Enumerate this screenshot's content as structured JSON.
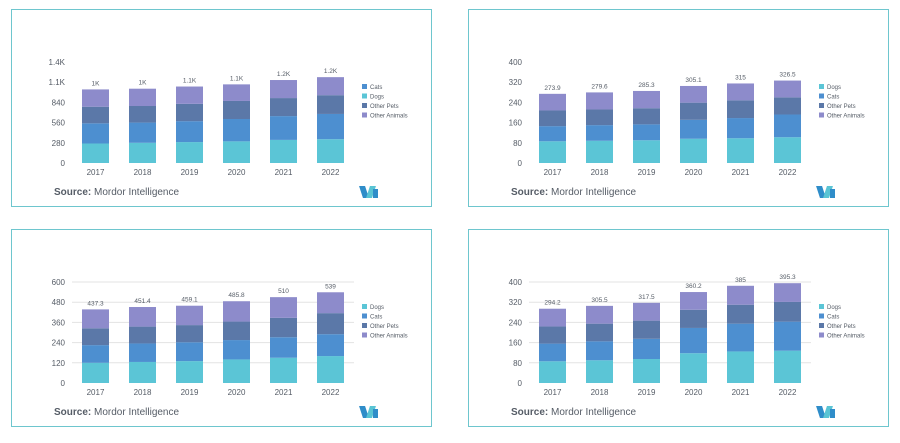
{
  "colors": {
    "dogs": "#5bc5d6",
    "cats": "#4d8fd0",
    "other_pets": "#5b78a8",
    "other_animals": "#8d8bcb",
    "border": "#6ec6ce",
    "text": "#555c66",
    "grid": "#e3e3e3"
  },
  "source_label": "Source:",
  "source_name": "Mordor Intelligence",
  "logo_icon": "mordor-intelligence-logo-icon",
  "chart_data": [
    {
      "type": "bar",
      "stacked": true,
      "categories": [
        "2017",
        "2018",
        "2019",
        "2020",
        "2021",
        "2022"
      ],
      "yticks": [
        "0",
        "280",
        "560",
        "840",
        "1.1K",
        "1.4K"
      ],
      "ylim": [
        0,
        1400
      ],
      "grid": false,
      "legend_position": "right",
      "legend_order": [
        "Cats",
        "Dogs",
        "Other Pets",
        "Other Animals"
      ],
      "totals": [
        "1K",
        "1K",
        "1.1K",
        "1.1K",
        "1.2K",
        "1.2K"
      ],
      "series": [
        {
          "name": "Dogs",
          "color_key": "dogs",
          "values": [
            270,
            280,
            290,
            300,
            320,
            330
          ]
        },
        {
          "name": "Cats",
          "color_key": "cats",
          "values": [
            280,
            280,
            290,
            310,
            330,
            350
          ]
        },
        {
          "name": "Other Pets",
          "color_key": "other_pets",
          "values": [
            230,
            230,
            240,
            250,
            250,
            260
          ]
        },
        {
          "name": "Other Animals",
          "color_key": "other_animals",
          "values": [
            240,
            240,
            240,
            230,
            250,
            250
          ]
        }
      ]
    },
    {
      "type": "bar",
      "stacked": true,
      "categories": [
        "2017",
        "2018",
        "2019",
        "2020",
        "2021",
        "2022"
      ],
      "yticks": [
        "0",
        "80",
        "160",
        "240",
        "320",
        "400"
      ],
      "ylim": [
        0,
        400
      ],
      "grid": false,
      "legend_position": "right",
      "legend_order": [
        "Dogs",
        "Cats",
        "Other Pets",
        "Other Animals"
      ],
      "totals": [
        "273.9",
        "279.6",
        "285.3",
        "305.1",
        "315",
        "326.5"
      ],
      "series": [
        {
          "name": "Dogs",
          "color_key": "dogs",
          "values": [
            86,
            88,
            90,
            96,
            98,
            102
          ]
        },
        {
          "name": "Cats",
          "color_key": "cats",
          "values": [
            60,
            62,
            63,
            75,
            80,
            90
          ]
        },
        {
          "name": "Other Pets",
          "color_key": "other_pets",
          "values": [
            62,
            62,
            64,
            68,
            70,
            68
          ]
        },
        {
          "name": "Other Animals",
          "color_key": "other_animals",
          "values": [
            65.9,
            67.6,
            68.3,
            66.1,
            67,
            66.5
          ]
        }
      ]
    },
    {
      "type": "bar",
      "stacked": true,
      "categories": [
        "2017",
        "2018",
        "2019",
        "2020",
        "2021",
        "2022"
      ],
      "yticks": [
        "0",
        "120",
        "240",
        "360",
        "480",
        "600"
      ],
      "ylim": [
        0,
        600
      ],
      "grid": true,
      "legend_position": "right",
      "legend_order": [
        "Dogs",
        "Cats",
        "Other Pets",
        "Other Animals"
      ],
      "totals": [
        "437.3",
        "451.4",
        "459.1",
        "485.8",
        "510",
        "539"
      ],
      "series": [
        {
          "name": "Dogs",
          "color_key": "dogs",
          "values": [
            120,
            125,
            130,
            140,
            150,
            160
          ]
        },
        {
          "name": "Cats",
          "color_key": "cats",
          "values": [
            105,
            110,
            112,
            115,
            122,
            130
          ]
        },
        {
          "name": "Other Pets",
          "color_key": "other_pets",
          "values": [
            100,
            100,
            102,
            110,
            115,
            125
          ]
        },
        {
          "name": "Other Animals",
          "color_key": "other_animals",
          "values": [
            112.3,
            116.4,
            115.1,
            120.8,
            123,
            124
          ]
        }
      ]
    },
    {
      "type": "bar",
      "stacked": true,
      "categories": [
        "2017",
        "2018",
        "2019",
        "2020",
        "2021",
        "2022"
      ],
      "yticks": [
        "0",
        "80",
        "160",
        "240",
        "320",
        "400"
      ],
      "ylim": [
        0,
        400
      ],
      "grid": true,
      "legend_position": "right",
      "legend_order": [
        "Dogs",
        "Cats",
        "Other Pets",
        "Other Animals"
      ],
      "totals": [
        "294.2",
        "305.5",
        "317.5",
        "360.2",
        "385",
        "395.3"
      ],
      "series": [
        {
          "name": "Dogs",
          "color_key": "dogs",
          "values": [
            86,
            90,
            95,
            118,
            125,
            128
          ]
        },
        {
          "name": "Cats",
          "color_key": "cats",
          "values": [
            70,
            75,
            80,
            100,
            110,
            115
          ]
        },
        {
          "name": "Other Pets",
          "color_key": "other_pets",
          "values": [
            68,
            70,
            72,
            72,
            75,
            78
          ]
        },
        {
          "name": "Other Animals",
          "color_key": "other_animals",
          "values": [
            70.2,
            70.5,
            70.5,
            70.2,
            75,
            74.3
          ]
        }
      ]
    }
  ]
}
